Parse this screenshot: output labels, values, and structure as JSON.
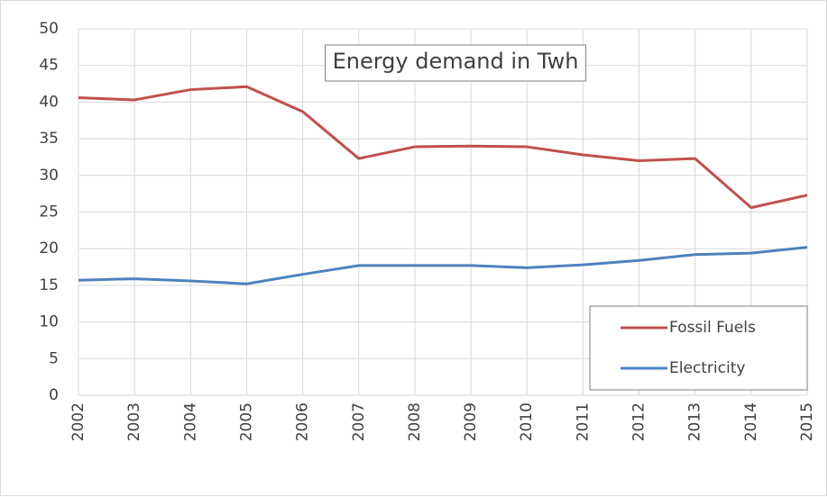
{
  "chart_data": {
    "type": "line",
    "title": "Energy demand in Twh",
    "categories": [
      "2002",
      "2003",
      "2004",
      "2005",
      "2006",
      "2007",
      "2008",
      "2009",
      "2010",
      "2011",
      "2012",
      "2013",
      "2014",
      "2015"
    ],
    "series": [
      {
        "name": "Fossil Fuels",
        "color": "#c0504d",
        "values": [
          40.6,
          40.3,
          41.7,
          42.1,
          38.7,
          32.3,
          33.9,
          34.0,
          33.9,
          32.8,
          32.0,
          32.3,
          25.6,
          27.3
        ]
      },
      {
        "name": "Electricity",
        "color": "#4f81bd",
        "values": [
          15.7,
          15.9,
          15.6,
          15.2,
          16.5,
          17.7,
          17.7,
          17.7,
          17.4,
          17.8,
          18.4,
          19.2,
          19.4,
          20.2
        ]
      }
    ],
    "ylim": [
      0,
      50
    ],
    "yticks": [
      0,
      5,
      10,
      15,
      20,
      25,
      30,
      35,
      40,
      45,
      50
    ],
    "grid": true,
    "legend": "lower right"
  }
}
